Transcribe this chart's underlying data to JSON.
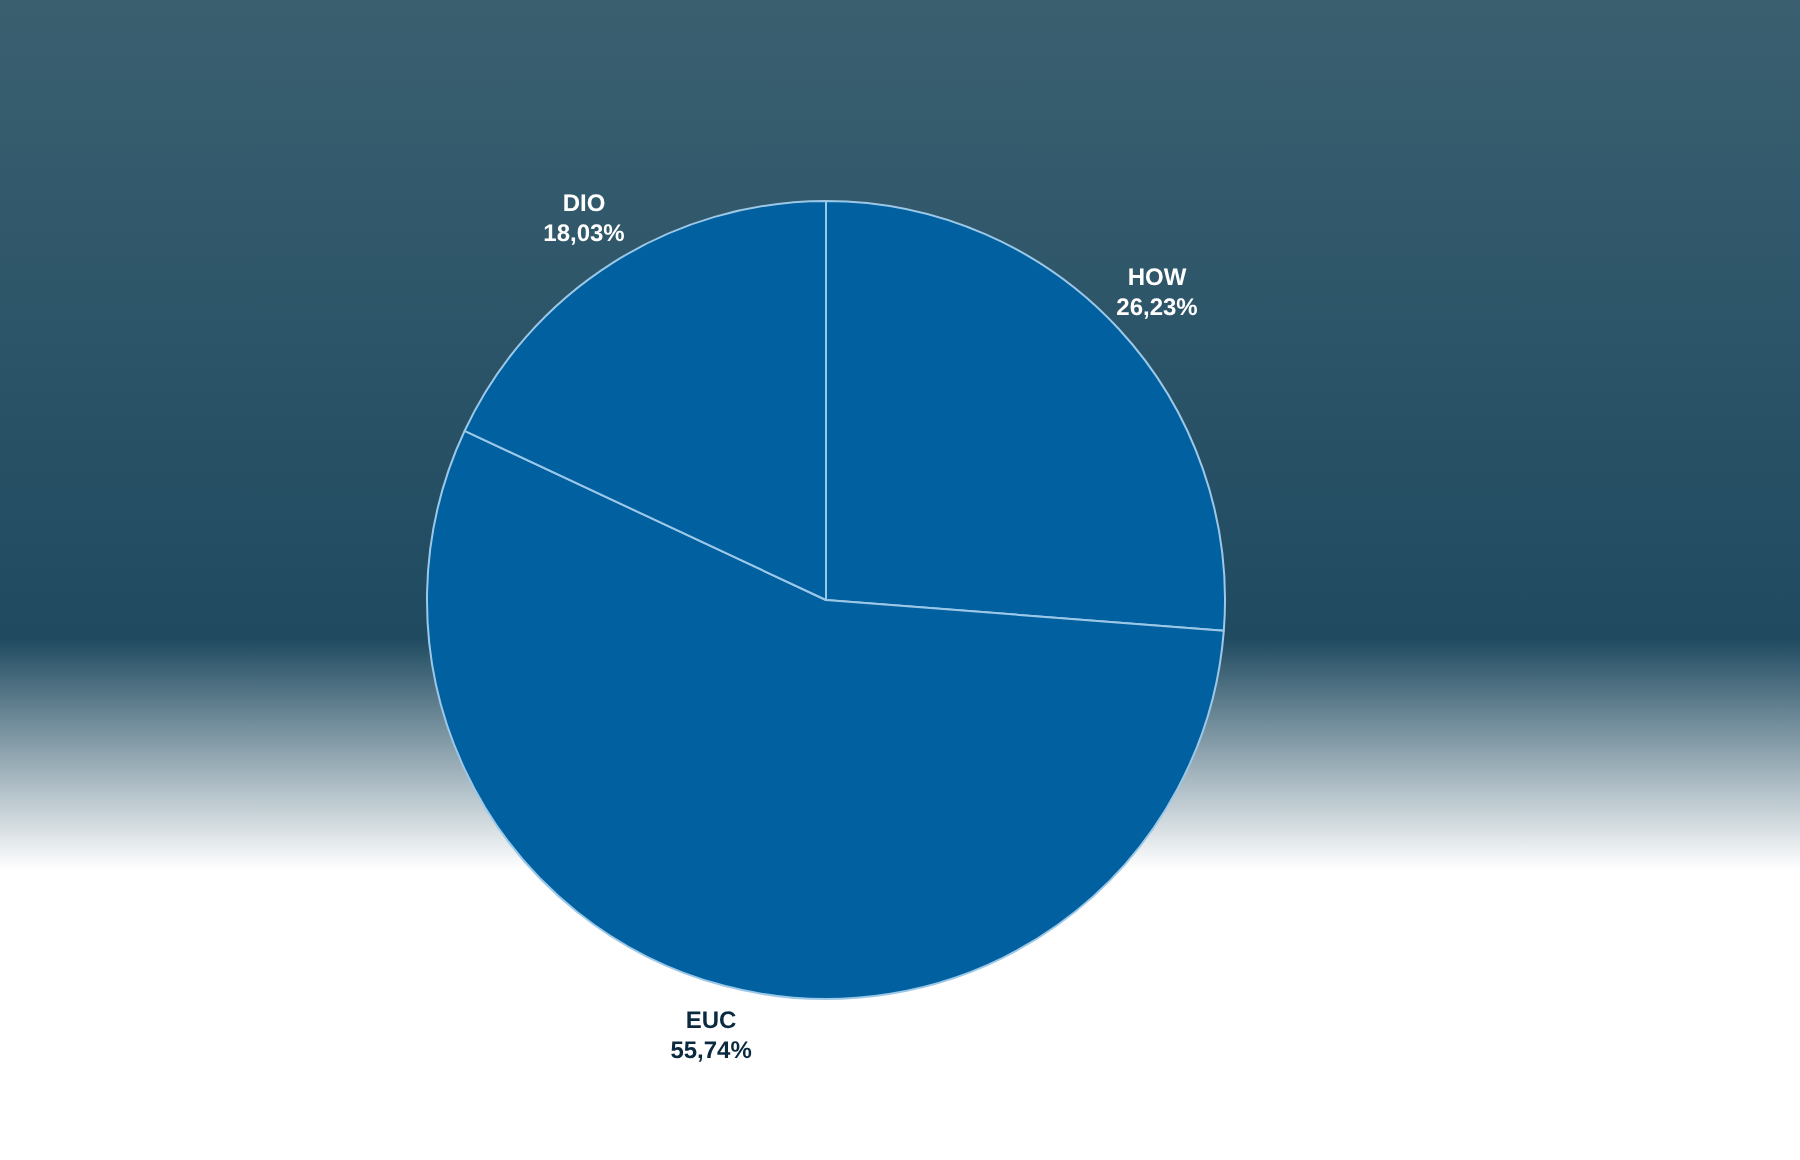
{
  "chart_data": {
    "type": "pie",
    "categories": [
      "HOW",
      "EUC",
      "DIO"
    ],
    "values": [
      26.23,
      55.74,
      18.03
    ],
    "colors": [
      "#0060a0",
      "#0060a0",
      "#0060a0"
    ],
    "value_labels": [
      "26,23%",
      "55,74%",
      "18,03%"
    ],
    "legend": false
  }
}
